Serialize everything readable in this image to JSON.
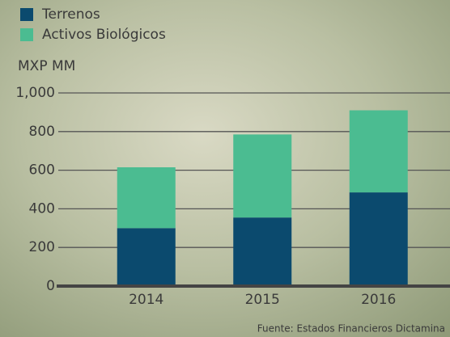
{
  "chart_data": {
    "type": "stacked_bar",
    "y_label": "MXP MM",
    "categories": [
      "2014",
      "2015",
      "2016"
    ],
    "series": [
      {
        "name": "Terrenos",
        "color": "#0b4a6e",
        "values": [
          300,
          355,
          485
        ]
      },
      {
        "name": "Activos Biológicos",
        "color": "#4bbc91",
        "values": [
          315,
          430,
          425
        ]
      }
    ],
    "ylim": [
      0,
      1000
    ],
    "yticks": [
      0,
      200,
      400,
      600,
      800,
      {
        "value": 1000,
        "label": "1,000"
      }
    ],
    "grid": true,
    "source": "Fuente: Estados Financieros Dictamina"
  }
}
